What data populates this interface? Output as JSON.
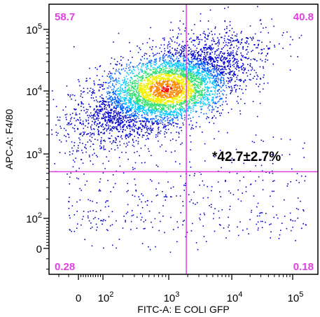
{
  "chart_data": {
    "type": "scatter",
    "style": "flow-cytometry density dot plot",
    "xlabel": "FITC-A: E COLI GFP",
    "ylabel": "APC-A: F4/80",
    "x_scale": "biexponential",
    "y_scale": "biexponential",
    "x_ticks": [
      {
        "value": 0,
        "label": "0"
      },
      {
        "value": 100,
        "label": "10",
        "sup": "2"
      },
      {
        "value": 1000,
        "label": "10",
        "sup": "3"
      },
      {
        "value": 10000,
        "label": "10",
        "sup": "4"
      },
      {
        "value": 100000,
        "label": "10",
        "sup": "5"
      }
    ],
    "y_ticks": [
      {
        "value": 0,
        "label": "0"
      },
      {
        "value": 100,
        "label": "10",
        "sup": "2"
      },
      {
        "value": 1000,
        "label": "10",
        "sup": "3"
      },
      {
        "value": 10000,
        "label": "10",
        "sup": "4"
      },
      {
        "value": 100000,
        "label": "10",
        "sup": "5"
      }
    ],
    "x_range": [
      -300,
      250000
    ],
    "y_range": [
      -250,
      250000
    ],
    "gate": {
      "x": 1900,
      "y": 530,
      "color": "#e040e0"
    },
    "quadrants": [
      {
        "position": "top-left",
        "value": "58.7"
      },
      {
        "position": "top-right",
        "value": "40.8"
      },
      {
        "position": "bottom-left",
        "value": "0.28"
      },
      {
        "position": "bottom-right",
        "value": "0.18"
      }
    ],
    "annotation": "*42.7±2.7%",
    "population": {
      "center_x": 900,
      "center_y": 11000,
      "colormap": [
        "#0000cc",
        "#0060ff",
        "#00c8ff",
        "#30e070",
        "#f0f000",
        "#ff8800",
        "#ff0000"
      ]
    },
    "grid": false,
    "legend": "none"
  }
}
